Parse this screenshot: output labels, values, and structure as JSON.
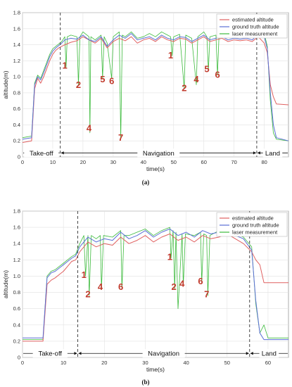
{
  "colors": {
    "estimated": "#e06060",
    "ground_truth": "#5b6fd6",
    "laser": "#3dbb3d",
    "event_label": "#c0392b"
  },
  "chart_data": [
    {
      "type": "line",
      "caption": "(a)",
      "xlabel": "time(s)",
      "ylabel": "altitude(m)",
      "xlim": [
        0,
        88
      ],
      "ylim": [
        0,
        1.8
      ],
      "xticks": [
        0,
        10,
        20,
        30,
        40,
        50,
        60,
        70,
        80
      ],
      "yticks": [
        0,
        0.2,
        0.4,
        0.6,
        0.8,
        1.0,
        1.2,
        1.4,
        1.6,
        1.8
      ],
      "grid": true,
      "legend_position": "top-right",
      "legend": [
        "estimated altitude",
        "ground truth altitude",
        "laser measurement"
      ],
      "phase_dividers": [
        12.5,
        77.5
      ],
      "phases": [
        {
          "label": "Take-off",
          "x_start": 0,
          "x_end": 12.5
        },
        {
          "label": "Navigation",
          "x_start": 12.5,
          "x_end": 77.5
        },
        {
          "label": "Land",
          "x_start": 77.5,
          "x_end": 88
        }
      ],
      "annotations": [
        {
          "text": "1",
          "x": 14,
          "y": 1.1
        },
        {
          "text": "2",
          "x": 18.5,
          "y": 0.86
        },
        {
          "text": "4",
          "x": 22,
          "y": 0.32
        },
        {
          "text": "5",
          "x": 26.5,
          "y": 0.93
        },
        {
          "text": "6",
          "x": 29.5,
          "y": 0.91
        },
        {
          "text": "7",
          "x": 32.5,
          "y": 0.2
        },
        {
          "text": "1",
          "x": 49,
          "y": 1.23
        },
        {
          "text": "2",
          "x": 53.5,
          "y": 0.82
        },
        {
          "text": "4",
          "x": 57.5,
          "y": 0.93
        },
        {
          "text": "5",
          "x": 61,
          "y": 1.06
        },
        {
          "text": "6",
          "x": 64.5,
          "y": 0.99
        }
      ],
      "series": [
        {
          "name": "estimated altitude",
          "x": [
            0,
            3,
            4,
            5,
            6,
            7,
            8,
            9,
            10,
            11,
            12,
            13,
            14,
            16,
            18,
            20,
            22,
            24,
            26,
            28,
            30,
            32,
            34,
            36,
            38,
            40,
            42,
            44,
            46,
            48,
            50,
            52,
            54,
            56,
            58,
            60,
            62,
            64,
            66,
            68,
            70,
            72,
            74,
            76,
            78,
            80,
            81,
            82,
            83,
            84,
            88
          ],
          "y": [
            0.18,
            0.2,
            0.85,
            0.98,
            0.92,
            1.0,
            1.1,
            1.2,
            1.28,
            1.33,
            1.36,
            1.38,
            1.4,
            1.43,
            1.45,
            1.5,
            1.46,
            1.42,
            1.48,
            1.36,
            1.44,
            1.48,
            1.45,
            1.5,
            1.42,
            1.46,
            1.48,
            1.44,
            1.5,
            1.46,
            1.44,
            1.48,
            1.47,
            1.42,
            1.46,
            1.5,
            1.44,
            1.46,
            1.48,
            1.44,
            1.46,
            1.45,
            1.46,
            1.44,
            1.5,
            1.42,
            1.3,
            0.9,
            0.75,
            0.66,
            0.65
          ]
        },
        {
          "name": "ground truth altitude",
          "x": [
            0,
            3,
            4,
            5,
            6,
            7,
            8,
            9,
            10,
            11,
            12,
            13,
            14,
            16,
            18,
            20,
            22,
            24,
            26,
            28,
            30,
            32,
            34,
            36,
            38,
            40,
            42,
            44,
            46,
            48,
            50,
            52,
            54,
            56,
            58,
            60,
            62,
            64,
            66,
            68,
            70,
            72,
            74,
            76,
            78,
            80,
            81,
            82,
            83,
            84,
            88
          ],
          "y": [
            0.22,
            0.24,
            0.9,
            1.0,
            0.96,
            1.05,
            1.15,
            1.25,
            1.32,
            1.36,
            1.39,
            1.42,
            1.46,
            1.48,
            1.47,
            1.52,
            1.46,
            1.44,
            1.5,
            1.38,
            1.46,
            1.52,
            1.48,
            1.54,
            1.46,
            1.48,
            1.5,
            1.46,
            1.52,
            1.48,
            1.46,
            1.5,
            1.49,
            1.44,
            1.48,
            1.52,
            1.46,
            1.48,
            1.5,
            1.46,
            1.48,
            1.47,
            1.48,
            1.46,
            1.53,
            1.5,
            1.35,
            0.8,
            0.4,
            0.24,
            0.2
          ]
        },
        {
          "name": "laser measurement",
          "x": [
            0,
            3,
            4,
            5,
            6,
            7,
            8,
            9,
            10,
            11,
            12,
            13,
            14,
            14.4,
            14.8,
            16,
            18,
            18.5,
            19,
            20,
            22,
            22.3,
            22.6,
            24,
            26,
            26.5,
            27,
            28,
            29.5,
            30,
            32,
            32.5,
            33,
            34,
            36,
            38,
            40,
            42,
            44,
            46,
            48,
            49,
            49.5,
            50,
            52,
            53.5,
            54,
            56,
            57.5,
            58,
            60,
            61,
            61.5,
            62,
            64,
            64.5,
            65,
            66,
            68,
            70,
            72,
            74,
            76,
            78,
            80,
            81,
            82,
            83,
            84,
            88
          ],
          "y": [
            0.24,
            0.26,
            0.92,
            1.02,
            0.98,
            1.08,
            1.18,
            1.28,
            1.35,
            1.38,
            1.41,
            1.44,
            1.5,
            1.12,
            1.5,
            1.52,
            1.5,
            0.9,
            1.5,
            1.56,
            1.5,
            0.3,
            1.5,
            1.46,
            1.52,
            0.98,
            1.5,
            1.42,
            0.98,
            1.5,
            1.56,
            0.22,
            1.52,
            1.5,
            1.56,
            1.48,
            1.5,
            1.54,
            1.5,
            1.56,
            1.52,
            1.5,
            1.26,
            1.5,
            1.53,
            0.86,
            1.52,
            1.48,
            0.9,
            1.5,
            1.56,
            1.5,
            1.08,
            1.5,
            1.52,
            1.02,
            1.5,
            1.54,
            1.5,
            1.52,
            1.5,
            1.52,
            1.5,
            1.55,
            1.54,
            1.38,
            0.7,
            0.3,
            0.22,
            0.2
          ]
        }
      ]
    },
    {
      "type": "line",
      "caption": "(b)",
      "xlabel": "time(s)",
      "ylabel": "altitude(m)",
      "xlim": [
        0,
        65
      ],
      "ylim": [
        0,
        1.8
      ],
      "xticks": [
        0,
        10,
        20,
        30,
        40,
        50,
        60
      ],
      "yticks": [
        0,
        0.2,
        0.4,
        0.6,
        0.8,
        1.0,
        1.2,
        1.4,
        1.6,
        1.8
      ],
      "grid": true,
      "legend_position": "top-right",
      "legend": [
        "estimated altitude",
        "ground truth altitude",
        "laser measurement"
      ],
      "phase_dividers": [
        13.5,
        55.5
      ],
      "phases": [
        {
          "label": "Take-off",
          "x_start": 0,
          "x_end": 13.5
        },
        {
          "label": "Navigation",
          "x_start": 13.5,
          "x_end": 55.5
        },
        {
          "label": "Land",
          "x_start": 55.5,
          "x_end": 65
        }
      ],
      "annotations": [
        {
          "text": "1",
          "x": 15,
          "y": 0.98
        },
        {
          "text": "2",
          "x": 16,
          "y": 0.74
        },
        {
          "text": "4",
          "x": 19,
          "y": 0.83
        },
        {
          "text": "6",
          "x": 24,
          "y": 0.83
        },
        {
          "text": "1",
          "x": 36,
          "y": 1.2
        },
        {
          "text": "2",
          "x": 37,
          "y": 0.83
        },
        {
          "text": "4",
          "x": 39,
          "y": 0.87
        },
        {
          "text": "6",
          "x": 43.5,
          "y": 0.9
        },
        {
          "text": "7",
          "x": 45,
          "y": 0.74
        }
      ],
      "series": [
        {
          "name": "estimated altitude",
          "x": [
            0,
            4,
            5,
            6,
            7,
            8,
            9,
            10,
            11,
            12,
            13,
            14,
            16,
            18,
            20,
            22,
            24,
            26,
            28,
            30,
            32,
            34,
            36,
            38,
            40,
            42,
            44,
            46,
            48,
            50,
            52,
            54,
            56,
            57,
            58,
            59,
            60,
            65
          ],
          "y": [
            0.2,
            0.2,
            0.2,
            0.9,
            0.95,
            0.98,
            1.02,
            1.06,
            1.12,
            1.18,
            1.2,
            1.3,
            1.42,
            1.36,
            1.4,
            1.38,
            1.48,
            1.4,
            1.44,
            1.5,
            1.42,
            1.48,
            1.52,
            1.44,
            1.48,
            1.42,
            1.5,
            1.46,
            1.48,
            1.52,
            1.46,
            1.4,
            1.3,
            1.2,
            1.14,
            0.92,
            0.92,
            0.92
          ]
        },
        {
          "name": "ground truth altitude",
          "x": [
            0,
            4,
            5,
            6,
            7,
            8,
            9,
            10,
            11,
            12,
            13,
            14,
            16,
            18,
            20,
            22,
            24,
            26,
            28,
            30,
            32,
            34,
            36,
            38,
            40,
            42,
            44,
            46,
            48,
            50,
            52,
            54,
            56,
            57,
            58,
            59,
            60,
            65
          ],
          "y": [
            0.24,
            0.24,
            0.24,
            0.98,
            1.04,
            1.06,
            1.1,
            1.14,
            1.18,
            1.22,
            1.25,
            1.36,
            1.48,
            1.42,
            1.46,
            1.44,
            1.54,
            1.46,
            1.5,
            1.56,
            1.48,
            1.54,
            1.58,
            1.5,
            1.54,
            1.48,
            1.56,
            1.52,
            1.54,
            1.56,
            1.5,
            1.46,
            1.32,
            0.7,
            0.3,
            0.22,
            0.22,
            0.22
          ]
        },
        {
          "name": "laser measurement",
          "x": [
            0,
            4,
            5,
            6,
            7,
            8,
            9,
            10,
            11,
            12,
            13,
            14,
            15,
            15.4,
            16,
            16.3,
            16.8,
            18,
            19,
            19.3,
            19.8,
            22,
            24,
            24.3,
            24.8,
            26,
            28,
            30,
            32,
            34,
            36,
            36.3,
            36.8,
            37.2,
            37.5,
            38,
            39,
            39.3,
            39.8,
            42,
            43.5,
            43.8,
            44.3,
            45,
            45.3,
            45.8,
            48,
            50,
            52,
            54,
            56,
            57,
            58,
            59,
            60,
            65
          ],
          "y": [
            0.22,
            0.22,
            0.22,
            1.0,
            1.06,
            1.08,
            1.12,
            1.16,
            1.2,
            1.24,
            1.27,
            1.4,
            1.5,
            1.0,
            1.5,
            0.76,
            1.5,
            1.46,
            1.5,
            0.84,
            1.5,
            1.48,
            1.56,
            0.84,
            1.5,
            1.5,
            1.54,
            1.58,
            1.5,
            1.56,
            1.6,
            1.22,
            1.56,
            0.84,
            1.54,
            0.6,
            1.52,
            0.88,
            1.52,
            1.5,
            1.54,
            0.92,
            1.52,
            1.5,
            0.76,
            1.5,
            1.56,
            1.58,
            1.52,
            1.48,
            1.36,
            0.66,
            0.3,
            0.4,
            0.24,
            0.24
          ]
        }
      ]
    }
  ]
}
